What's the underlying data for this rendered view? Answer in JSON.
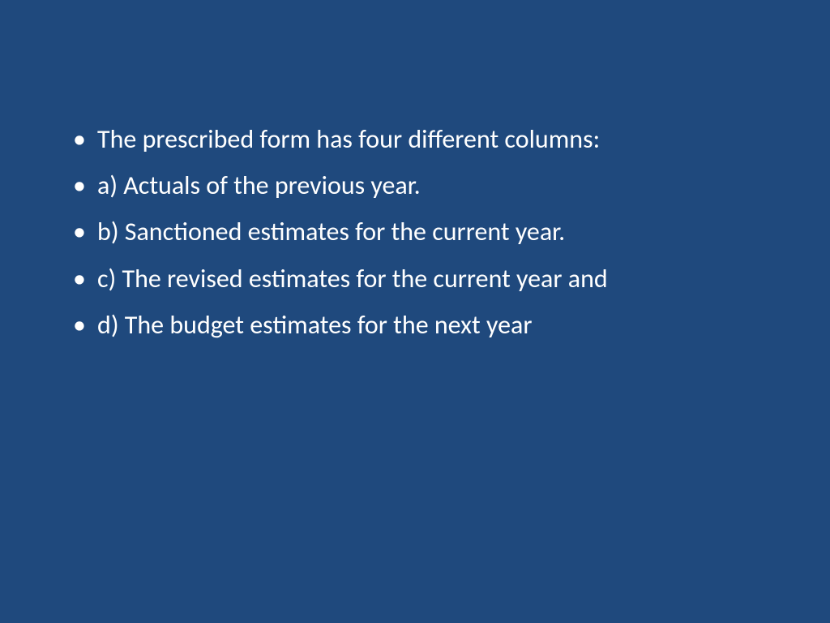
{
  "slide": {
    "background_color": "#1f497d",
    "text_color": "#ffffff",
    "font_family": "Calibri",
    "font_size_pt": 28,
    "bullets": [
      "The prescribed form has four different columns:",
      "a) Actuals of the previous year.",
      "b) Sanctioned estimates for the current year.",
      "c) The revised estimates for the current year and",
      "d) The budget estimates for the next year"
    ]
  }
}
